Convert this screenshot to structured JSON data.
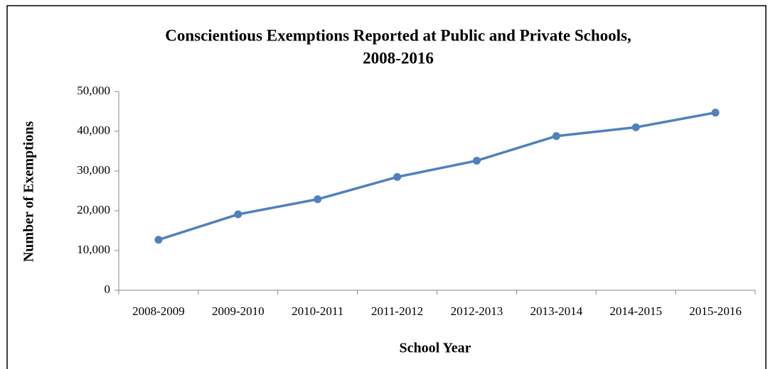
{
  "chart_data": {
    "type": "line",
    "title": [
      "Conscientious Exemptions Reported at Public and Private Schools,",
      "2008-2016"
    ],
    "x_label": "School Year",
    "y_label": "Number of Exemptions",
    "categories": [
      "2008-2009",
      "2009-2010",
      "2010-2011",
      "2011-2012",
      "2012-2013",
      "2013-2014",
      "2014-2015",
      "2015-2016"
    ],
    "values": [
      12700,
      19100,
      22900,
      28500,
      32600,
      38800,
      41000,
      44700
    ],
    "color": "#4f81bd",
    "ylim": [
      0,
      50000
    ],
    "yticks": [
      0,
      {
        "value": 10000,
        "label": "10,000"
      },
      {
        "value": 20000,
        "label": "20,000"
      },
      {
        "value": 30000,
        "label": "30,000"
      },
      {
        "value": 40000,
        "label": "40,000"
      },
      {
        "value": 50000,
        "label": "50,000"
      }
    ],
    "grid": false
  }
}
